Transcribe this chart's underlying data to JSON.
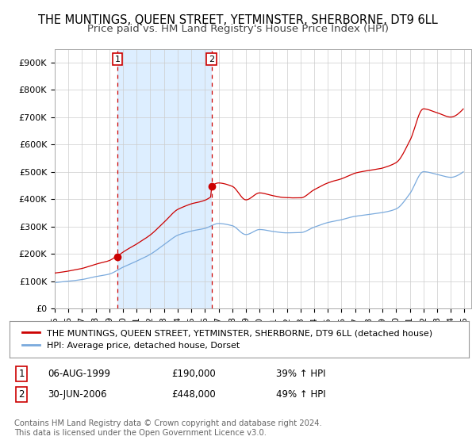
{
  "title1": "THE MUNTINGS, QUEEN STREET, YETMINSTER, SHERBORNE, DT9 6LL",
  "title2": "Price paid vs. HM Land Registry's House Price Index (HPI)",
  "ylabel_ticks": [
    "£0",
    "£100K",
    "£200K",
    "£300K",
    "£400K",
    "£500K",
    "£600K",
    "£700K",
    "£800K",
    "£900K"
  ],
  "ytick_values": [
    0,
    100000,
    200000,
    300000,
    400000,
    500000,
    600000,
    700000,
    800000,
    900000
  ],
  "ylim": [
    0,
    950000
  ],
  "xlim_start": 1995.0,
  "xlim_end": 2025.5,
  "sale1_date": 1999.58,
  "sale1_price": 190000,
  "sale1_label": "1",
  "sale2_date": 2006.49,
  "sale2_price": 448000,
  "sale2_label": "2",
  "red_line_color": "#cc0000",
  "blue_line_color": "#7aaadd",
  "shade_color": "#ddeeff",
  "dashed_vline_color": "#cc0000",
  "background_color": "#ffffff",
  "plot_bg_color": "#ffffff",
  "grid_color": "#cccccc",
  "legend_label_red": "THE MUNTINGS, QUEEN STREET, YETMINSTER, SHERBORNE, DT9 6LL (detached house)",
  "legend_label_blue": "HPI: Average price, detached house, Dorset",
  "table_row1": [
    "1",
    "06-AUG-1999",
    "£190,000",
    "39% ↑ HPI"
  ],
  "table_row2": [
    "2",
    "30-JUN-2006",
    "£448,000",
    "49% ↑ HPI"
  ],
  "footer": "Contains HM Land Registry data © Crown copyright and database right 2024.\nThis data is licensed under the Open Government Licence v3.0.",
  "title1_fontsize": 10.5,
  "title2_fontsize": 9.5,
  "tick_fontsize": 8,
  "legend_fontsize": 8
}
